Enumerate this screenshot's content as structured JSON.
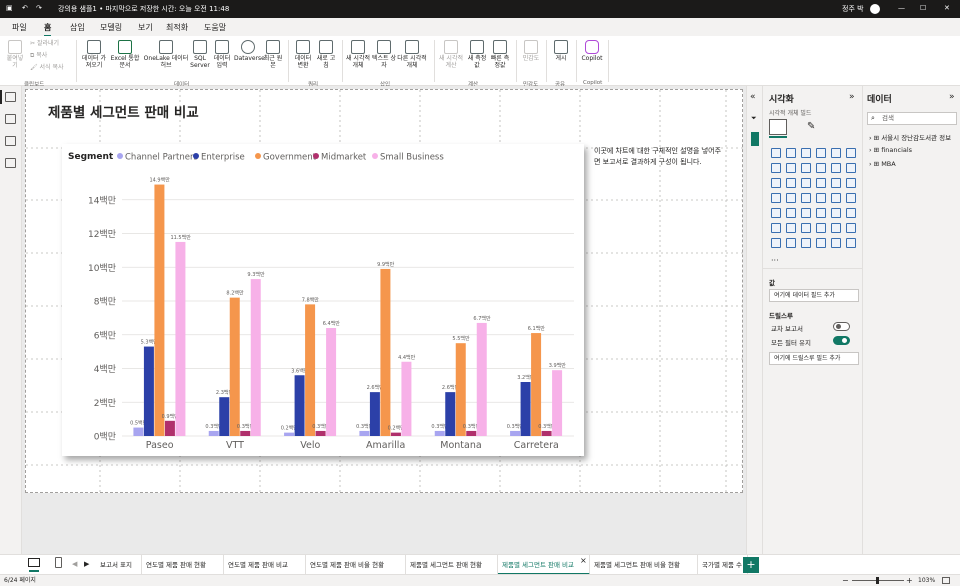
{
  "titlebar": {
    "title": "강의용 샘플1 • 마지막으로 저장한 시간: 오늘 오전 11:48",
    "user": "정주 박"
  },
  "menu_tabs": [
    "파일",
    "홈",
    "삽입",
    "모델링",
    "보기",
    "최적화",
    "도움말"
  ],
  "share_label": "공유",
  "ribbon": {
    "clipboard": {
      "paste": "붙여넣기",
      "cut": "잘라내기",
      "copy": "복사",
      "format": "서식 복사",
      "group": "클립보드"
    },
    "data_items": [
      "데이터 가져오기",
      "Excel 통합 문서",
      "OneLake 데이터 허브",
      "SQL Server",
      "데이터 입력",
      "Dataverse",
      "최근 원본"
    ],
    "data_group": "데이터",
    "query_items": [
      "데이터 변환",
      "새로 고침"
    ],
    "query_group": "쿼리",
    "insert_items": [
      "새 시각적 개체",
      "텍스트 상자",
      "다른 시각적 개체"
    ],
    "insert_group": "삽입",
    "calc_items": [
      "새 시각적 계산",
      "새 측정값",
      "빠른 측정값"
    ],
    "calc_group": "계산",
    "sensitivity": "민감도",
    "sensitivity_group": "민감도",
    "publish": "게시",
    "publish_group": "공유",
    "copilot": "Copilot",
    "copilot_group": "Copilot"
  },
  "page": {
    "title": "제품별 세그먼트 판매 비교",
    "description": "이곳에 차트에 대한 구체적인 설명을 넣어주면 보고서로 결과하게 구성이 됩니다."
  },
  "chart_data": {
    "type": "bar",
    "legend_title": "Segment",
    "legend_position": "top-left",
    "categories": [
      "Paseo",
      "VTT",
      "Velo",
      "Amarilla",
      "Montana",
      "Carretera"
    ],
    "series": [
      {
        "name": "Channel Partners",
        "color": "#a8a5f0",
        "values": [
          0.5,
          0.3,
          0.2,
          0.3,
          0.3,
          0.3
        ],
        "labels": [
          "0.5백만",
          "0.3백만",
          "0.2백만",
          "0.3백만",
          "0.3백만",
          "0.3백만"
        ]
      },
      {
        "name": "Enterprise",
        "color": "#2c40a8",
        "values": [
          5.3,
          2.3,
          3.6,
          2.6,
          2.6,
          3.2
        ],
        "labels": [
          "5.3백만",
          "2.3백만",
          "3.6백만",
          "2.6백만",
          "2.6백만",
          "3.2백만"
        ]
      },
      {
        "name": "Government",
        "color": "#f5964c",
        "values": [
          14.9,
          8.2,
          7.8,
          9.9,
          5.5,
          6.1
        ],
        "labels": [
          "14.9백만",
          "8.2백만",
          "7.8백만",
          "9.9백만",
          "5.5백만",
          "6.1백만"
        ]
      },
      {
        "name": "Midmarket",
        "color": "#b0306c",
        "values": [
          0.9,
          0.3,
          0.3,
          0.2,
          0.3,
          0.3
        ],
        "labels": [
          "0.9백만",
          "0.3백만",
          "0.3백만",
          "0.2백만",
          "0.3백만",
          "0.3백만"
        ]
      },
      {
        "name": "Small Business",
        "color": "#f7b1e8",
        "values": [
          11.5,
          9.3,
          6.4,
          4.4,
          6.7,
          3.9
        ],
        "labels": [
          "11.5백만",
          "9.3백만",
          "6.4백만",
          "4.4백만",
          "6.7백만",
          "3.9백만"
        ]
      }
    ],
    "y_ticks": [
      "0백만",
      "2백만",
      "4백만",
      "6백만",
      "8백만",
      "10백만",
      "12백만",
      "14백만"
    ],
    "ylim": [
      0,
      16
    ],
    "grid": true,
    "unit": "백만"
  },
  "viz_pane": {
    "title": "시각화",
    "build_label": "시각적 개체 빌드",
    "values_heading": "값",
    "values_well": "여기에 데이터 필드 추가",
    "drillthrough_heading": "드릴스루",
    "cross_report": "교차 보고서",
    "cross_report_state": "끔",
    "keep_filters": "모든 필터 유지",
    "keep_filters_state": "켬",
    "drill_well": "여기에 드릴스루 필드 추가"
  },
  "data_pane": {
    "title": "데이터",
    "search_placeholder": "검색",
    "tables": [
      "서울시 장난감도서관 정보",
      "financials",
      "MBA"
    ]
  },
  "page_tabs": [
    "보고서 표지",
    "연도별 제품 판매 현황",
    "연도별 제품 판매 비교",
    "연도별 제품 판매 비율 현황",
    "제품별 세그먼트 판매 현황",
    "제품별 세그먼트 판매 비교",
    "제품별 세그먼트 판매 비율 현황",
    "국가별 제품 수"
  ],
  "active_page_index": 5,
  "status": {
    "page_indicator": "6/24 페이지",
    "zoom": "103%"
  }
}
